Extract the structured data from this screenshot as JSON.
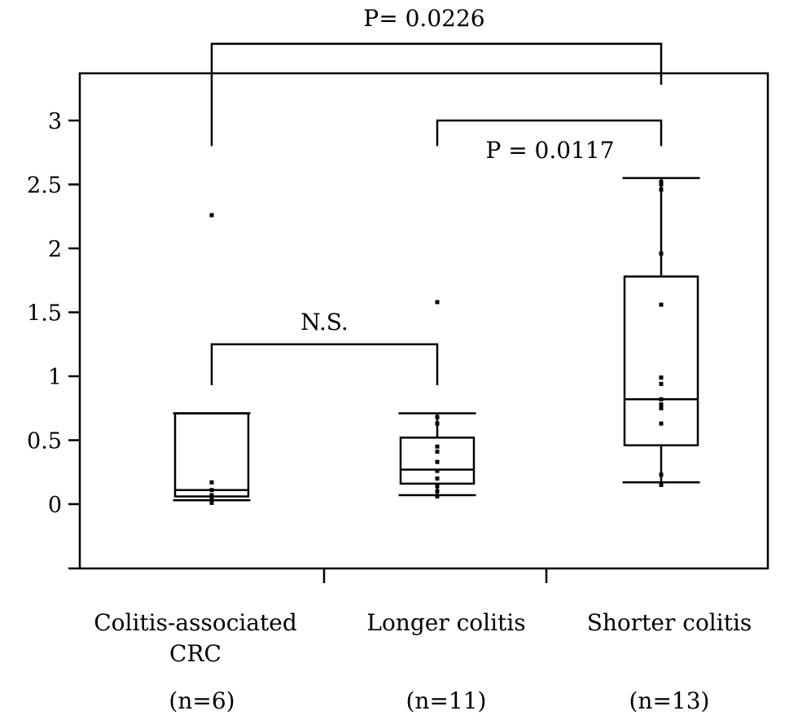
{
  "chart_data": {
    "type": "box",
    "title": "",
    "xlabel": "",
    "ylabel": "",
    "ylim": [
      -0.5,
      3.4
    ],
    "yticks": [
      0,
      0.5,
      1,
      1.5,
      2,
      2.5,
      3
    ],
    "ytick_labels": [
      "0",
      "0.5",
      "1",
      "1.5",
      "2",
      "2.5",
      "3"
    ],
    "grid": false,
    "groups": [
      {
        "label_lines": [
          "Colitis-associated",
          "CRC"
        ],
        "n_label": "(n=6)",
        "whisker_low": 0.03,
        "q1": 0.06,
        "median": 0.11,
        "q3": 0.71,
        "whisker_high": 0.71,
        "points": [
          0.01,
          0.04,
          0.07,
          0.11,
          0.17,
          2.26
        ]
      },
      {
        "label_lines": [
          "Longer colitis"
        ],
        "n_label": "(n=11)",
        "whisker_low": 0.07,
        "q1": 0.16,
        "median": 0.27,
        "q3": 0.52,
        "whisker_high": 0.71,
        "points": [
          0.06,
          0.1,
          0.14,
          0.2,
          0.26,
          0.33,
          0.41,
          0.45,
          0.63,
          0.68,
          1.58
        ]
      },
      {
        "label_lines": [
          "Shorter colitis"
        ],
        "n_label": "(n=13)",
        "whisker_low": 0.17,
        "q1": 0.46,
        "median": 0.82,
        "q3": 1.78,
        "whisker_high": 2.55,
        "points": [
          0.15,
          0.23,
          0.63,
          0.75,
          0.78,
          0.82,
          0.94,
          0.99,
          1.56,
          1.96,
          2.46,
          2.5,
          2.52
        ]
      }
    ],
    "comparisons": [
      {
        "from": 0,
        "to": 2,
        "label": "P= 0.0226",
        "level": 3.6,
        "left_foot": 2.8,
        "right_foot": 3.28
      },
      {
        "from": 1,
        "to": 2,
        "label": "P = 0.0117",
        "level": 3.0,
        "left_foot": 2.8,
        "right_foot": 2.8
      },
      {
        "from": 0,
        "to": 1,
        "label": "N.S.",
        "level": 1.25,
        "left_foot": 0.93,
        "right_foot": 0.93
      }
    ]
  }
}
